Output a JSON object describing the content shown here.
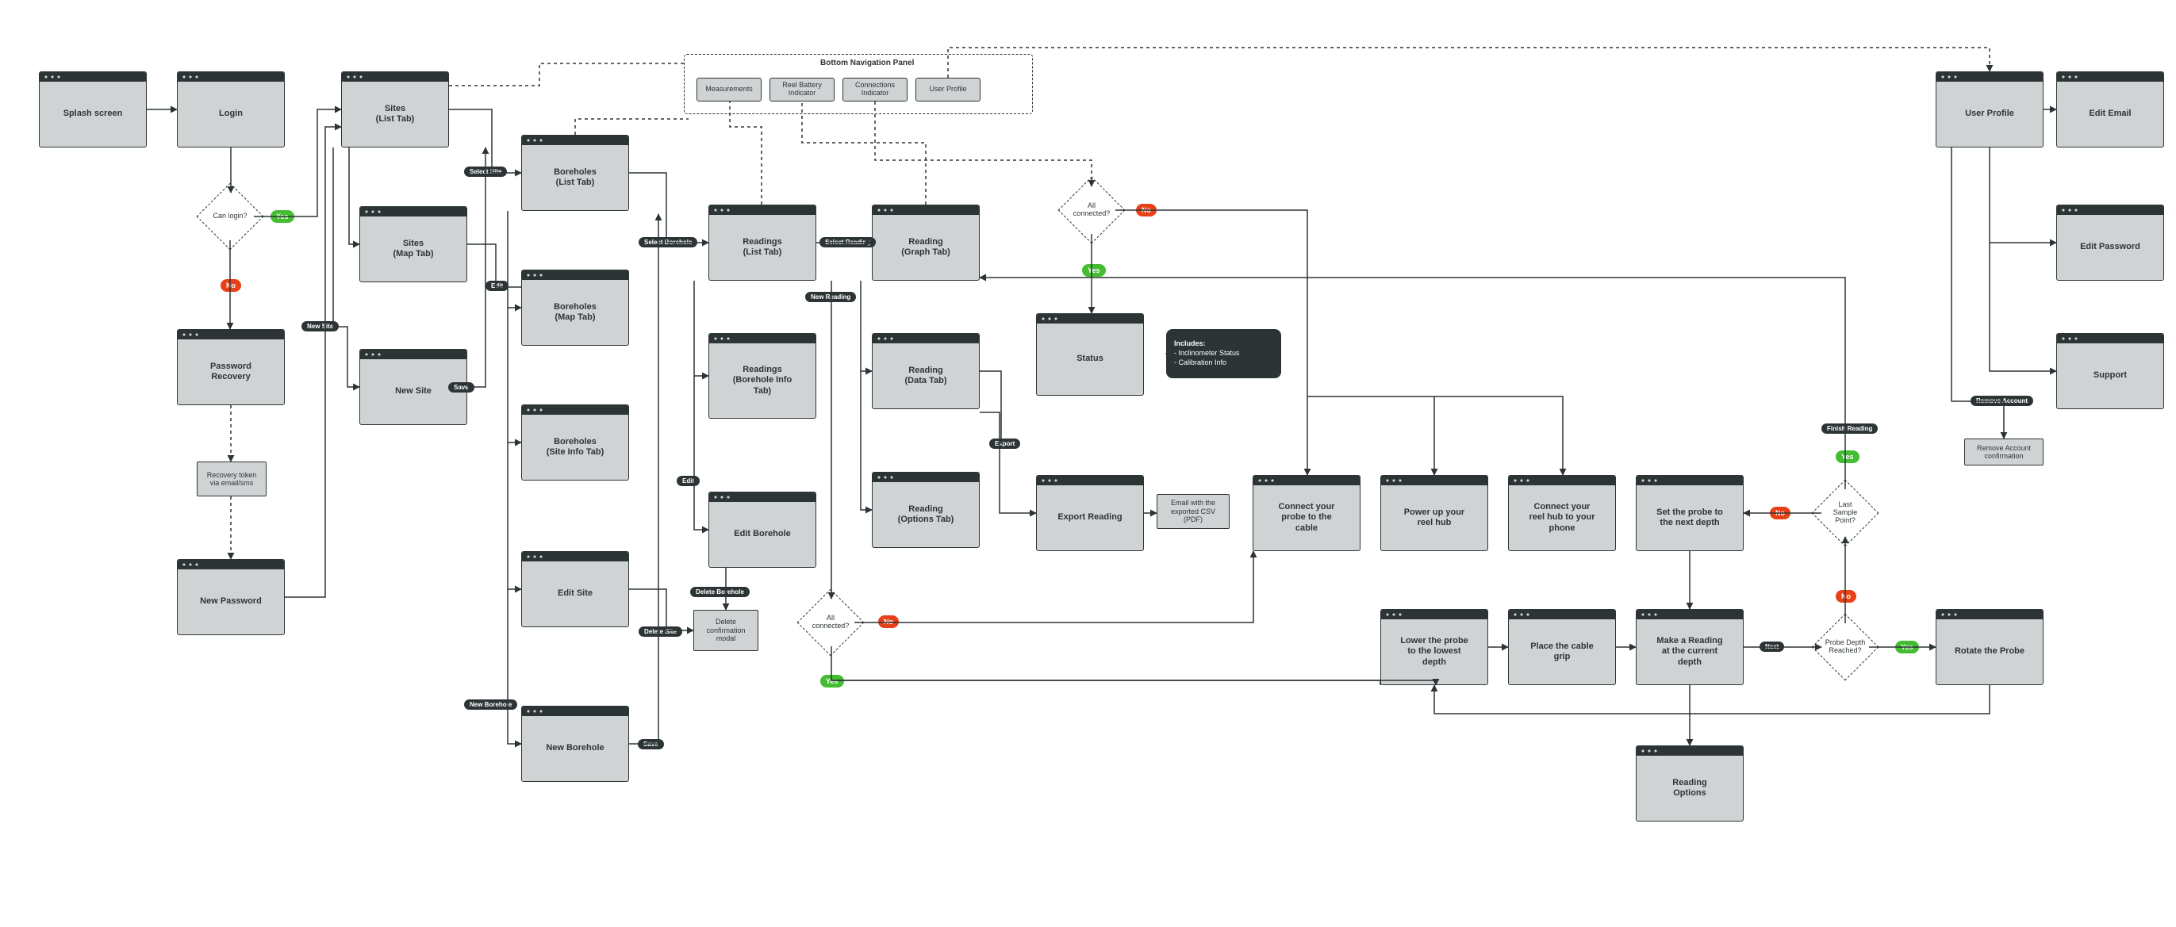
{
  "diagram": {
    "type": "flowchart",
    "background_color": "#ffffff",
    "node_fill": "#d0d3d4",
    "node_border": "#2d3436",
    "node_titlebar": "#2d3436",
    "edge_color": "#2d3436",
    "edge_width": 1.5,
    "edge_dash_color": "#2d3436",
    "diamond_border_style": "dashed",
    "chip_yes_color": "#44bd32",
    "chip_no_color": "#e84118",
    "edge_label_bg": "#2d3436",
    "font_family": "-apple-system, Segoe UI, Arial, sans-serif",
    "font_size_pt": 8,
    "stroke_style_solid": "solid",
    "stroke_style_dashed": "dashed"
  },
  "bottom_nav": {
    "title": "Bottom Navigation Panel",
    "items": {
      "measurements": "Measurements",
      "battery": "Reel Battery\nIndicator",
      "connections": "Connections\nIndicator",
      "profile": "User Profile"
    }
  },
  "screens": {
    "splash": {
      "label": "Splash screen"
    },
    "login": {
      "label": "Login"
    },
    "sites_list": {
      "label": "Sites\n(List Tab)"
    },
    "sites_map": {
      "label": "Sites\n(Map Tab)"
    },
    "new_site": {
      "label": "New Site"
    },
    "password_recovery": {
      "label": "Password\nRecovery"
    },
    "new_password": {
      "label": "New Password"
    },
    "boreholes_list": {
      "label": "Boreholes\n(List Tab)"
    },
    "boreholes_map": {
      "label": "Boreholes\n(Map Tab)"
    },
    "boreholes_siteinfo": {
      "label": "Boreholes\n(Site Info Tab)"
    },
    "edit_site": {
      "label": "Edit Site"
    },
    "new_borehole": {
      "label": "New Borehole"
    },
    "readings_list": {
      "label": "Readings\n(List Tab)"
    },
    "readings_boreinfo": {
      "label": "Readings\n(Borehole Info\nTab)"
    },
    "edit_borehole": {
      "label": "Edit Borehole"
    },
    "reading_graph": {
      "label": "Reading\n(Graph Tab)"
    },
    "reading_data": {
      "label": "Reading\n(Data Tab)"
    },
    "reading_options": {
      "label": "Reading\n(Options Tab)"
    },
    "status": {
      "label": "Status"
    },
    "export_reading": {
      "label": "Export Reading"
    },
    "connect_probe": {
      "label": "Connect your\nprobe to the\ncable"
    },
    "power_up_hub": {
      "label": "Power up your\nreel hub"
    },
    "connect_hub_phone": {
      "label": "Connect your\nreel hub to your\nphone"
    },
    "lower_probe": {
      "label": "Lower the probe\nto the lowest\ndepth"
    },
    "place_cable_grip": {
      "label": "Place the cable\ngrip"
    },
    "make_reading": {
      "label": "Make a Reading\nat the current\ndepth"
    },
    "reading_options2": {
      "label": "Reading\nOptions"
    },
    "set_probe_next": {
      "label": "Set the probe to\nthe next depth"
    },
    "rotate_probe": {
      "label": "Rotate the Probe"
    },
    "user_profile": {
      "label": "User Profile"
    },
    "edit_email": {
      "label": "Edit Email"
    },
    "edit_password": {
      "label": "Edit Password"
    },
    "support": {
      "label": "Support"
    }
  },
  "small_nodes": {
    "recovery_token": "Recovery token\nvia email/sms",
    "delete_conf_modal": "Delete\nconfirmation\nmodal",
    "email_csv": "Email with the\nexported CSV\n(PDF)",
    "remove_account_conf": "Remove Account\nconfirmation"
  },
  "bubble": {
    "title": "Includes:",
    "line1": "- Inclinometer Status",
    "line2": "- Calibration Info"
  },
  "diamonds": {
    "can_login": "Can login?",
    "all_connected_1": "All\nconnected?",
    "all_connected_2": "All\nconnected?",
    "probe_depth": "Probe Depth\nReached?",
    "last_sample": "Last\nSample\nPoint?"
  },
  "chips": {
    "yes": "Yes",
    "no": "No"
  },
  "edge_labels": {
    "new_site": "New Site",
    "select_site": "Select Site",
    "edit": "Edit",
    "select_borehole": "Select Borehole",
    "new_borehole": "New Borehole",
    "save": "Save",
    "delete_site": "Delete Site",
    "delete_borehole": "Delete Borehole",
    "select_reading": "Select Reading",
    "new_reading": "New Reading",
    "export": "Export",
    "next": "Next",
    "finish_reading": "Finish Reading",
    "remove_account": "Remove Account"
  }
}
